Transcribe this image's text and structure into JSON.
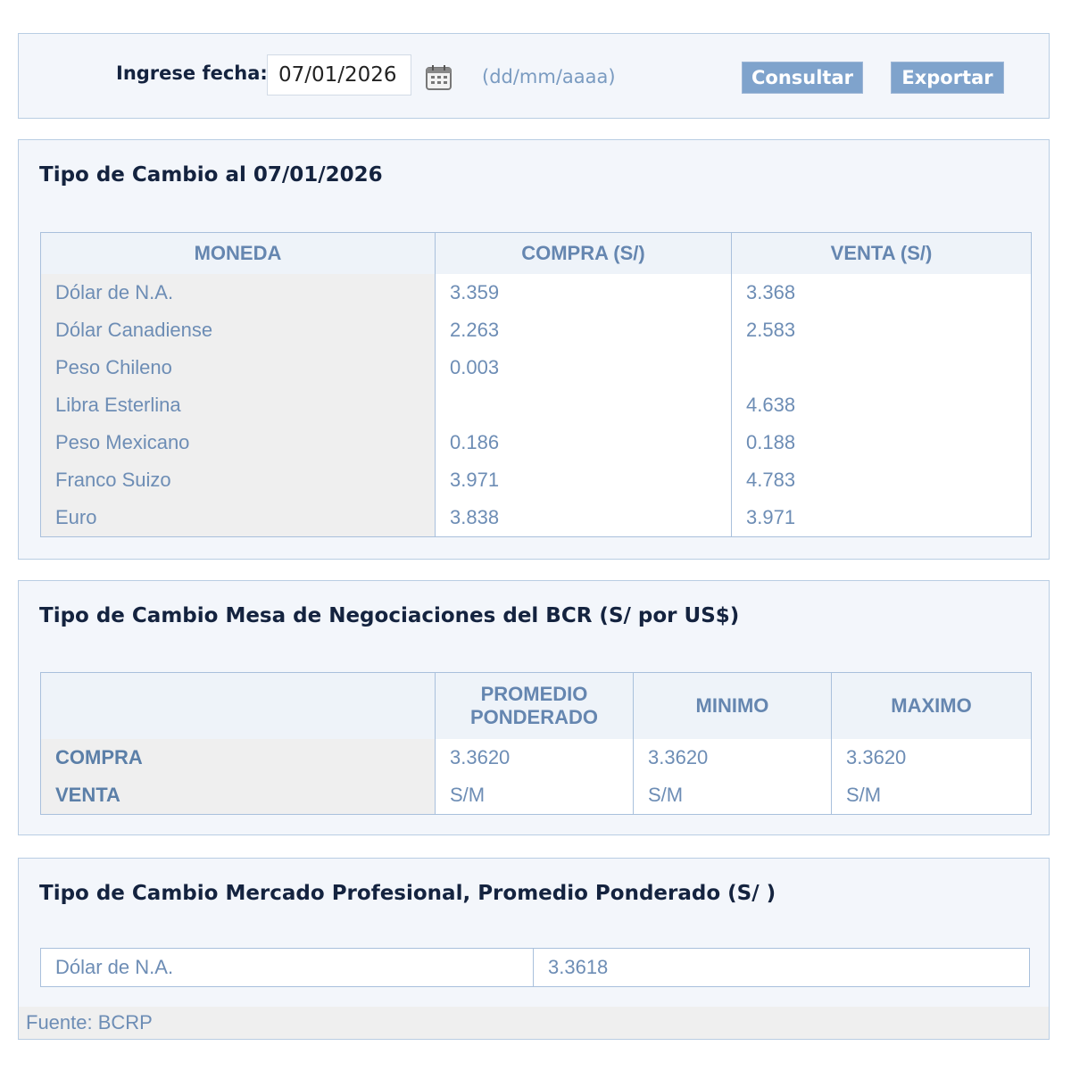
{
  "form": {
    "label": "Ingrese fecha:",
    "date": "07/01/2026",
    "format": "(dd/mm/aaaa)",
    "buttons": [
      "Consultar",
      "Exportar"
    ]
  },
  "sections": [
    {
      "title": "Tipo de Cambio al 07/01/2026",
      "table": {
        "headers": [
          "MONEDA",
          "COMPRA (S/)",
          "VENTA (S/)"
        ],
        "rows": [
          [
            "Dólar de N.A.",
            "3.359",
            "3.368"
          ],
          [
            "Dólar Canadiense",
            "2.263",
            "2.583"
          ],
          [
            "Peso Chileno",
            "0.003",
            null
          ],
          [
            "Libra Esterlina",
            null,
            "4.638"
          ],
          [
            "Peso Mexicano",
            "0.186",
            "0.188"
          ],
          [
            "Franco Suizo",
            "3.971",
            "4.783"
          ],
          [
            "Euro",
            "3.838",
            "3.971"
          ]
        ]
      }
    },
    {
      "title": "Tipo de Cambio Mesa de Negociaciones del BCR (S/ por US$)",
      "table": {
        "headers": [
          null,
          "PROMEDIO PONDERADO",
          "MINIMO",
          "MAXIMO"
        ],
        "rows": [
          [
            "COMPRA",
            "3.3620",
            "3.3620",
            "3.3620"
          ],
          [
            "VENTA",
            "S/M",
            "S/M",
            "S/M"
          ]
        ]
      }
    },
    {
      "title": "Tipo de Cambio Mercado Profesional, Promedio Ponderado (S/ )",
      "table": {
        "rows": [
          [
            "Dólar de N.A.",
            "3.3618"
          ]
        ]
      }
    }
  ],
  "footer": "Fuente: BCRP"
}
